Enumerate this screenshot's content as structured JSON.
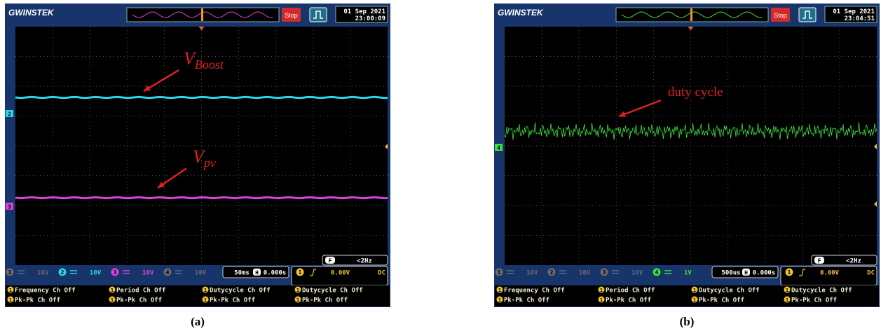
{
  "panels": [
    {
      "brand": "GWINSTEK",
      "status": "Stop",
      "date": "01 Sep 2021",
      "time": "23:00:09",
      "channels": [
        {
          "num": "1",
          "scale": "10V",
          "color": "#6b6b6b"
        },
        {
          "num": "2",
          "scale": "10V",
          "color": "#27d7ea"
        },
        {
          "num": "3",
          "scale": "10V",
          "color": "#e040e0"
        },
        {
          "num": "4",
          "scale": "10V",
          "color": "#6b6b6b"
        }
      ],
      "markers": [
        {
          "num": "2",
          "color": "#27d7ea"
        },
        {
          "num": "3",
          "color": "#e040e0"
        }
      ],
      "timebase": "50ms",
      "h_icon": "H",
      "offset": "0.000s",
      "trigger": {
        "source": "1",
        "level": "0.00V",
        "coupling": "DC"
      },
      "freq_icon": "F",
      "freq": "<2Hz",
      "measurements": [
        {
          "source": "1",
          "text": "Frequency Ch Off"
        },
        {
          "source": "1",
          "text": "Period Ch Off"
        },
        {
          "source": "1",
          "text": "Dutycycle Ch Off"
        },
        {
          "source": "1",
          "text": "Dutycycle Ch Off"
        },
        {
          "source": "1",
          "text": "Pk-Pk Ch Off"
        },
        {
          "source": "1",
          "text": "Pk-Pk Ch Off"
        },
        {
          "source": "1",
          "text": "Pk-Pk Ch Off"
        },
        {
          "source": "1",
          "text": "Pk-Pk Ch Off"
        }
      ],
      "annotations": [
        {
          "main": "V",
          "sub": "Boost"
        },
        {
          "main": "V",
          "sub": "pv"
        }
      ],
      "caption": "(a)"
    },
    {
      "brand": "GWINSTEK",
      "status": "Stop",
      "date": "01 Sep 2021",
      "time": "23:04:51",
      "channels": [
        {
          "num": "1",
          "scale": "10V",
          "color": "#6b6b6b"
        },
        {
          "num": "2",
          "scale": "10V",
          "color": "#6b6b6b"
        },
        {
          "num": "3",
          "scale": "10V",
          "color": "#6b6b6b"
        },
        {
          "num": "4",
          "scale": "1V",
          "color": "#3fe03f"
        }
      ],
      "markers": [
        {
          "num": "4",
          "color": "#3fe03f"
        }
      ],
      "timebase": "500us",
      "h_icon": "H",
      "offset": "0.000s",
      "trigger": {
        "source": "1",
        "level": "0.00V",
        "coupling": "DC"
      },
      "freq_icon": "F",
      "freq": "<2Hz",
      "measurements": [
        {
          "source": "1",
          "text": "Frequency Ch Off"
        },
        {
          "source": "1",
          "text": "Period Ch Off"
        },
        {
          "source": "1",
          "text": "Dutycycle Ch Off"
        },
        {
          "source": "1",
          "text": "Dutycycle Ch Off"
        },
        {
          "source": "1",
          "text": "Pk-Pk Ch Off"
        },
        {
          "source": "1",
          "text": "Pk-Pk Ch Off"
        },
        {
          "source": "1",
          "text": "Pk-Pk Ch Off"
        },
        {
          "source": "1",
          "text": "Pk-Pk Ch Off"
        }
      ],
      "annotations": [
        {
          "main": "duty cycle"
        }
      ],
      "caption": "(b)"
    }
  ]
}
